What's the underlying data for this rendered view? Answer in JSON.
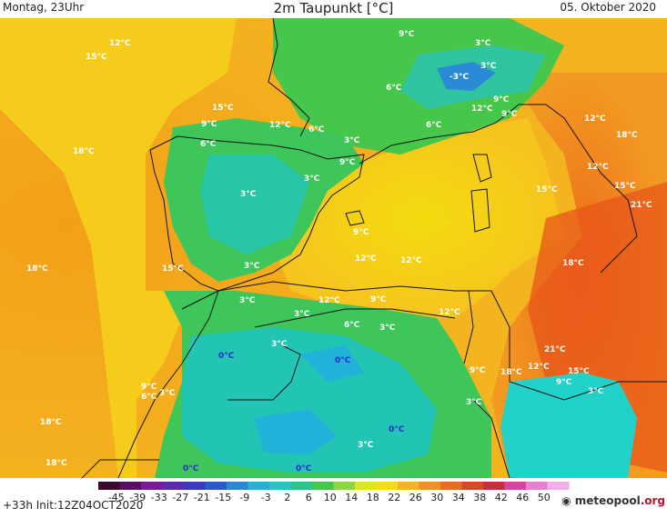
{
  "header": {
    "left": "Montag, 23Uhr",
    "center": "2m Taupunkt [°C]",
    "right": "05. Oktober 2020"
  },
  "labels": [
    {
      "t": "12°C",
      "cold": false
    },
    {
      "t": "15°C",
      "cold": false
    },
    {
      "t": "9°C",
      "cold": false
    },
    {
      "t": "3°C",
      "cold": false
    },
    {
      "t": "3°C",
      "cold": false
    },
    {
      "t": "-3°C",
      "cold": false
    },
    {
      "t": "6°C",
      "cold": false
    },
    {
      "t": "6°C",
      "cold": false
    },
    {
      "t": "9°C",
      "cold": false
    },
    {
      "t": "12°C",
      "cold": false
    },
    {
      "t": "15°C",
      "cold": false
    },
    {
      "t": "9°C",
      "cold": false
    },
    {
      "t": "12°C",
      "cold": false
    },
    {
      "t": "6°C",
      "cold": false
    },
    {
      "t": "3°C",
      "cold": false
    },
    {
      "t": "9°C",
      "cold": false
    },
    {
      "t": "6°C",
      "cold": false
    },
    {
      "t": "9°C",
      "cold": false
    },
    {
      "t": "12°C",
      "cold": false
    },
    {
      "t": "18°C",
      "cold": false
    },
    {
      "t": "18°C",
      "cold": false
    },
    {
      "t": "3°C",
      "cold": false
    },
    {
      "t": "3°C",
      "cold": false
    },
    {
      "t": "15°C",
      "cold": false
    },
    {
      "t": "12°C",
      "cold": false
    },
    {
      "t": "15°C",
      "cold": false
    },
    {
      "t": "21°C",
      "cold": false
    },
    {
      "t": "9°C",
      "cold": false
    },
    {
      "t": "12°C",
      "cold": false
    },
    {
      "t": "12°C",
      "cold": false
    },
    {
      "t": "18°C",
      "cold": false
    },
    {
      "t": "15°C",
      "cold": false
    },
    {
      "t": "3°C",
      "cold": false
    },
    {
      "t": "18°C",
      "cold": false
    },
    {
      "t": "3°C",
      "cold": false
    },
    {
      "t": "12°C",
      "cold": false
    },
    {
      "t": "9°C",
      "cold": false
    },
    {
      "t": "3°C",
      "cold": false
    },
    {
      "t": "6°C",
      "cold": false
    },
    {
      "t": "3°C",
      "cold": false
    },
    {
      "t": "12°C",
      "cold": false
    },
    {
      "t": "3°C",
      "cold": false
    },
    {
      "t": "0°C",
      "cold": true
    },
    {
      "t": "0°C",
      "cold": true
    },
    {
      "t": "21°C",
      "cold": false
    },
    {
      "t": "9°C",
      "cold": false
    },
    {
      "t": "18°C",
      "cold": false
    },
    {
      "t": "12°C",
      "cold": false
    },
    {
      "t": "15°C",
      "cold": false
    },
    {
      "t": "9°C",
      "cold": false
    },
    {
      "t": "3°C",
      "cold": false
    },
    {
      "t": "9°C",
      "cold": false
    },
    {
      "t": "6°C",
      "cold": false
    },
    {
      "t": "3°C",
      "cold": false
    },
    {
      "t": "3°C",
      "cold": false
    },
    {
      "t": "18°C",
      "cold": false
    },
    {
      "t": "0°C",
      "cold": true
    },
    {
      "t": "3°C",
      "cold": false
    },
    {
      "t": "18°C",
      "cold": false
    },
    {
      "t": "0°C",
      "cold": true
    },
    {
      "t": "0°C",
      "cold": true
    }
  ],
  "colorbar": {
    "ticks": [
      "-45",
      "-39",
      "-33",
      "-27",
      "-21",
      "-15",
      "-9",
      "-3",
      "2",
      "6",
      "10",
      "14",
      "18",
      "22",
      "26",
      "30",
      "34",
      "38",
      "42",
      "46",
      "50"
    ],
    "colors": [
      "#3a0a2a",
      "#5a1060",
      "#7a1a9a",
      "#5a2ab0",
      "#3a38c4",
      "#2a5ad0",
      "#2a86d6",
      "#20b4d8",
      "#20c8c0",
      "#24c888",
      "#44c84a",
      "#8cd83a",
      "#d8e81a",
      "#f4dc10",
      "#f8b41c",
      "#f4901c",
      "#ee6a1c",
      "#e04426",
      "#d02a40",
      "#e040a0",
      "#e880d0",
      "#f0b0e8"
    ]
  },
  "footer": {
    "left": "+33h  Init:12Z04OCT2020",
    "logo_icon": "meteopool-logo-icon",
    "logo_text": "meteopool",
    "logo_suffix": ".org"
  }
}
